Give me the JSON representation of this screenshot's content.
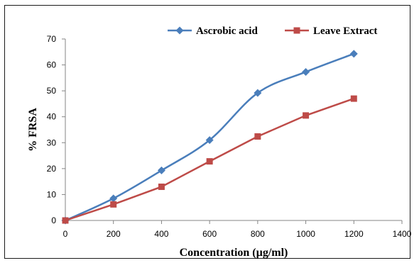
{
  "chart_data": {
    "type": "line",
    "title": "",
    "xlabel": "Concentration (µg/ml)",
    "ylabel": "% FRSA",
    "xlim": [
      0,
      1400
    ],
    "ylim": [
      0,
      70
    ],
    "xticks": [
      0,
      200,
      400,
      600,
      800,
      1000,
      1200,
      1400
    ],
    "yticks": [
      0,
      10,
      20,
      30,
      40,
      50,
      60,
      70
    ],
    "grid": false,
    "legend_position": "top-right",
    "series": [
      {
        "name": "Ascrobic acid",
        "color": "#4a7ebb",
        "marker": "diamond",
        "smooth": true,
        "x": [
          0,
          200,
          400,
          600,
          800,
          1000,
          1200
        ],
        "y": [
          0,
          8.5,
          19.3,
          31,
          49.2,
          57.3,
          64.3
        ]
      },
      {
        "name": "Leave Extract",
        "color": "#be4b48",
        "marker": "square",
        "smooth": false,
        "x": [
          0,
          200,
          400,
          600,
          800,
          1000,
          1200
        ],
        "y": [
          0,
          6.2,
          13,
          22.8,
          32.4,
          40.5,
          47
        ]
      }
    ]
  }
}
